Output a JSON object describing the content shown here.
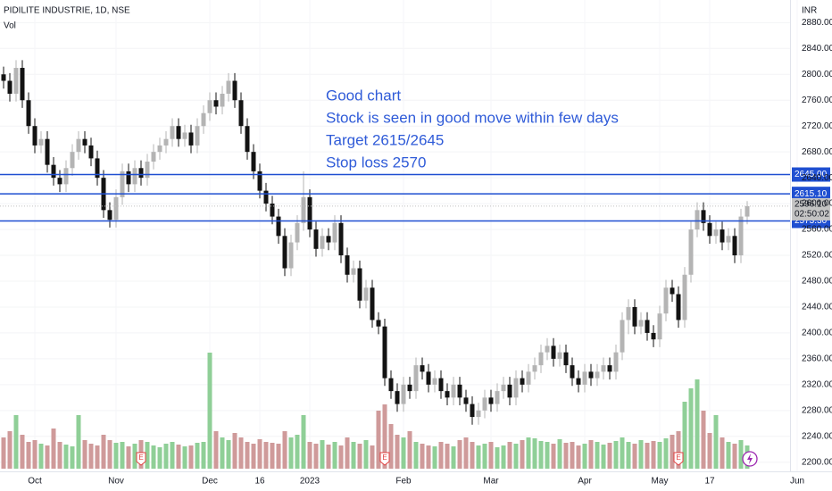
{
  "header": {
    "symbol": "PIDILITE INDUSTRIE, 1D, NSE",
    "indicator": "Vol",
    "currency": "INR"
  },
  "chart_data": {
    "type": "candlestick",
    "open": [
      2800,
      2790,
      2770,
      2810,
      2760,
      2720,
      2690,
      2700,
      2660,
      2640,
      2630,
      2655,
      2680,
      2700,
      2690,
      2670,
      2640,
      2590,
      2575,
      2610,
      2650,
      2630,
      2655,
      2640,
      2665,
      2680,
      2690,
      2700,
      2720,
      2700,
      2710,
      2690,
      2720,
      2740,
      2760,
      2750,
      2770,
      2790,
      2760,
      2720,
      2680,
      2650,
      2620,
      2600,
      2580,
      2550,
      2500,
      2540,
      2570,
      2610,
      2560,
      2530,
      2550,
      2540,
      2570,
      2520,
      2490,
      2500,
      2450,
      2470,
      2420,
      2410,
      2330,
      2310,
      2290,
      2320,
      2310,
      2350,
      2340,
      2320,
      2330,
      2310,
      2300,
      2320,
      2300,
      2290,
      2270,
      2280,
      2300,
      2290,
      2310,
      2320,
      2300,
      2330,
      2320,
      2340,
      2350,
      2370,
      2380,
      2360,
      2370,
      2350,
      2330,
      2320,
      2340,
      2330,
      2340,
      2350,
      2340,
      2370,
      2420,
      2440,
      2410,
      2420,
      2400,
      2390,
      2430,
      2470,
      2460,
      2420,
      2490,
      2560,
      2590,
      2570,
      2550,
      2560,
      2540,
      2550,
      2520,
      2580
    ],
    "high": [
      2812,
      2802,
      2822,
      2822,
      2772,
      2732,
      2712,
      2712,
      2672,
      2652,
      2667,
      2692,
      2712,
      2712,
      2702,
      2682,
      2652,
      2602,
      2622,
      2662,
      2662,
      2667,
      2667,
      2677,
      2692,
      2702,
      2712,
      2732,
      2732,
      2722,
      2722,
      2732,
      2752,
      2772,
      2772,
      2782,
      2802,
      2802,
      2772,
      2732,
      2692,
      2662,
      2632,
      2612,
      2592,
      2562,
      2552,
      2582,
      2650,
      2622,
      2572,
      2562,
      2562,
      2582,
      2582,
      2532,
      2512,
      2512,
      2482,
      2482,
      2432,
      2422,
      2342,
      2322,
      2332,
      2332,
      2362,
      2362,
      2352,
      2342,
      2342,
      2322,
      2332,
      2332,
      2312,
      2302,
      2292,
      2312,
      2312,
      2322,
      2332,
      2332,
      2342,
      2342,
      2352,
      2362,
      2382,
      2392,
      2392,
      2382,
      2382,
      2362,
      2342,
      2352,
      2352,
      2352,
      2362,
      2362,
      2382,
      2432,
      2452,
      2452,
      2432,
      2432,
      2412,
      2442,
      2482,
      2482,
      2472,
      2502,
      2572,
      2602,
      2602,
      2582,
      2572,
      2572,
      2562,
      2562,
      2592,
      2604
    ],
    "low": [
      2778,
      2758,
      2758,
      2748,
      2708,
      2678,
      2678,
      2648,
      2628,
      2618,
      2618,
      2643,
      2668,
      2678,
      2658,
      2628,
      2578,
      2563,
      2563,
      2598,
      2618,
      2618,
      2628,
      2628,
      2653,
      2668,
      2678,
      2688,
      2688,
      2688,
      2678,
      2678,
      2708,
      2728,
      2738,
      2738,
      2758,
      2748,
      2708,
      2668,
      2638,
      2608,
      2588,
      2568,
      2538,
      2488,
      2488,
      2528,
      2558,
      2548,
      2518,
      2518,
      2528,
      2528,
      2508,
      2478,
      2478,
      2438,
      2438,
      2408,
      2398,
      2318,
      2298,
      2278,
      2278,
      2298,
      2298,
      2328,
      2308,
      2308,
      2298,
      2288,
      2288,
      2288,
      2278,
      2258,
      2258,
      2268,
      2278,
      2278,
      2298,
      2288,
      2288,
      2308,
      2308,
      2328,
      2338,
      2358,
      2348,
      2348,
      2338,
      2318,
      2308,
      2308,
      2318,
      2318,
      2328,
      2328,
      2328,
      2358,
      2398,
      2398,
      2398,
      2388,
      2378,
      2378,
      2418,
      2448,
      2408,
      2408,
      2478,
      2548,
      2558,
      2538,
      2538,
      2528,
      2528,
      2508,
      2508,
      2568
    ],
    "close": [
      2790,
      2770,
      2810,
      2760,
      2720,
      2690,
      2700,
      2660,
      2640,
      2630,
      2655,
      2680,
      2700,
      2690,
      2670,
      2640,
      2590,
      2575,
      2610,
      2650,
      2630,
      2655,
      2640,
      2665,
      2680,
      2690,
      2700,
      2720,
      2700,
      2710,
      2690,
      2720,
      2740,
      2760,
      2750,
      2770,
      2790,
      2760,
      2720,
      2680,
      2650,
      2620,
      2600,
      2580,
      2550,
      2500,
      2540,
      2570,
      2610,
      2560,
      2530,
      2550,
      2540,
      2570,
      2520,
      2490,
      2500,
      2450,
      2470,
      2420,
      2410,
      2330,
      2310,
      2290,
      2320,
      2310,
      2350,
      2340,
      2320,
      2330,
      2310,
      2300,
      2320,
      2300,
      2290,
      2270,
      2280,
      2300,
      2290,
      2310,
      2320,
      2300,
      2330,
      2320,
      2340,
      2350,
      2370,
      2380,
      2360,
      2370,
      2350,
      2330,
      2320,
      2340,
      2330,
      2340,
      2350,
      2340,
      2370,
      2420,
      2440,
      2410,
      2420,
      2400,
      2390,
      2430,
      2470,
      2460,
      2420,
      2490,
      2560,
      2590,
      2570,
      2550,
      2560,
      2540,
      2550,
      2520,
      2580,
      2596.1
    ],
    "volume": [
      350,
      420,
      600,
      380,
      300,
      320,
      280,
      260,
      450,
      300,
      270,
      250,
      600,
      320,
      280,
      260,
      380,
      320,
      290,
      300,
      250,
      280,
      320,
      300,
      260,
      240,
      280,
      300,
      270,
      250,
      260,
      290,
      300,
      1300,
      420,
      350,
      320,
      400,
      350,
      300,
      280,
      330,
      300,
      290,
      280,
      420,
      350,
      380,
      600,
      300,
      280,
      320,
      270,
      300,
      260,
      350,
      300,
      280,
      320,
      260,
      650,
      720,
      500,
      380,
      350,
      420,
      300,
      280,
      260,
      250,
      300,
      280,
      250,
      320,
      350,
      300,
      260,
      280,
      300,
      240,
      260,
      300,
      280,
      320,
      350,
      340,
      310,
      300,
      280,
      330,
      290,
      300,
      260,
      280,
      320,
      300,
      270,
      290,
      310,
      350,
      300,
      280,
      320,
      290,
      310,
      300,
      340,
      380,
      420,
      750,
      900,
      1000,
      650,
      400,
      600,
      350,
      300,
      280,
      320,
      260
    ],
    "up_color": "#b4b4b4",
    "down_color": "#131313",
    "volume_up_color": "#8fcf97",
    "volume_down_color": "#cf9a9a",
    "ylim": [
      2190,
      2915
    ],
    "yticks": [
      {
        "value": 2200,
        "label": "2200.00"
      },
      {
        "value": 2240,
        "label": "2240.00"
      },
      {
        "value": 2280,
        "label": "2280.00"
      },
      {
        "value": 2320,
        "label": "2320.00"
      },
      {
        "value": 2360,
        "label": "2360.00"
      },
      {
        "value": 2400,
        "label": "2400.00"
      },
      {
        "value": 2440,
        "label": "2440.00"
      },
      {
        "value": 2480,
        "label": "2480.00"
      },
      {
        "value": 2520,
        "label": "2520.00"
      },
      {
        "value": 2560,
        "label": "2560.00"
      },
      {
        "value": 2600,
        "label": "2600.00"
      },
      {
        "value": 2640,
        "label": "2640.00"
      },
      {
        "value": 2680,
        "label": "2680.00"
      },
      {
        "value": 2720,
        "label": "2720.00"
      },
      {
        "value": 2760,
        "label": "2760.00"
      },
      {
        "value": 2800,
        "label": "2800.00"
      },
      {
        "value": 2840,
        "label": "2840.00"
      },
      {
        "value": 2880,
        "label": "2880.00"
      }
    ],
    "xticks": [
      {
        "value": 5,
        "label": "Oct"
      },
      {
        "value": 18,
        "label": "Nov"
      },
      {
        "value": 33,
        "label": "Dec"
      },
      {
        "value": 41,
        "label": "16"
      },
      {
        "value": 49,
        "label": "2023"
      },
      {
        "value": 64,
        "label": "Feb"
      },
      {
        "value": 78,
        "label": "Mar"
      },
      {
        "value": 93,
        "label": "Apr"
      },
      {
        "value": 105,
        "label": "May"
      },
      {
        "value": 113,
        "label": "17"
      },
      {
        "value": 127,
        "label": "Jun"
      }
    ],
    "grid": true,
    "levels": [
      {
        "value": 2645,
        "label": "2645.00"
      },
      {
        "value": 2615.1,
        "label": "2615.10"
      },
      {
        "value": 2573.3,
        "label": "2573.30"
      }
    ],
    "level_color": "#1f4fd1",
    "last_price": {
      "value": 2596.1,
      "label": "2596.10"
    },
    "countdown": "02:50:02",
    "events": [
      {
        "value": 22,
        "label": "E"
      },
      {
        "value": 61,
        "label": "E"
      },
      {
        "value": 108,
        "label": "E"
      }
    ],
    "annotation": [
      "Good chart",
      "Stock is seen in good move within few days",
      "Target 2615/2645",
      "Stop loss 2570"
    ]
  }
}
